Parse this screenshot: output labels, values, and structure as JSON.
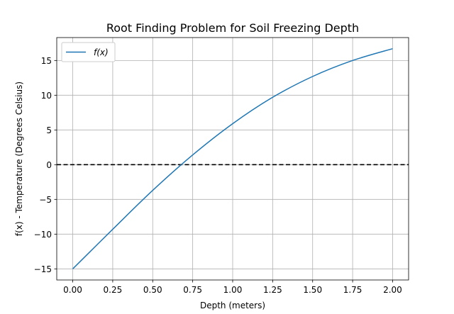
{
  "chart_data": {
    "type": "line",
    "title": "Root Finding Problem for Soil Freezing Depth",
    "xlabel": "Depth (meters)",
    "ylabel": "f(x) - Temperature (Degrees Celsius)",
    "xlim": [
      -0.1,
      2.1
    ],
    "ylim": [
      -16.6,
      18.3
    ],
    "xticks": [
      0.0,
      0.25,
      0.5,
      0.75,
      1.0,
      1.25,
      1.5,
      1.75,
      2.0
    ],
    "xtick_labels": [
      "0.00",
      "0.25",
      "0.50",
      "0.75",
      "1.00",
      "1.25",
      "1.50",
      "1.75",
      "2.00"
    ],
    "yticks": [
      -15,
      -10,
      -5,
      0,
      5,
      10,
      15
    ],
    "ytick_labels": [
      "−15",
      "−10",
      "−5",
      "0",
      "5",
      "10",
      "15"
    ],
    "grid": true,
    "legend": {
      "position": "upper-left"
    },
    "series": [
      {
        "name": "f(x)",
        "color": "#1f77b4",
        "x": [
          0.0,
          0.25,
          0.5,
          0.75,
          1.0,
          1.25,
          1.5,
          1.75,
          2.0
        ],
        "y": [
          -15.0,
          -9.3,
          -3.7,
          1.4,
          5.9,
          9.7,
          12.7,
          15.0,
          16.7
        ]
      }
    ],
    "reference_line": {
      "y": 0,
      "style": "dashed",
      "color": "#000000"
    }
  }
}
